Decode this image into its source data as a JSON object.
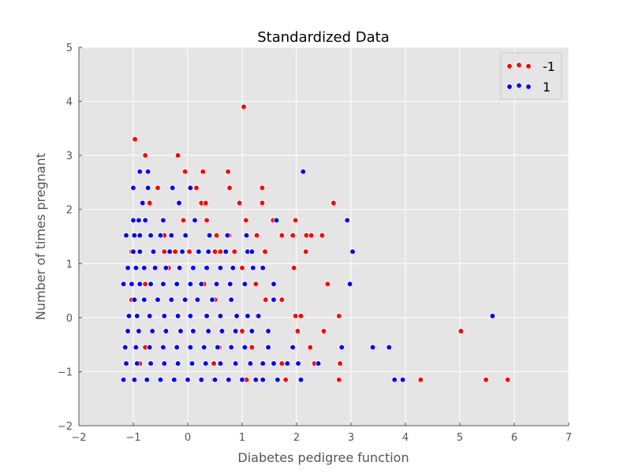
{
  "chart_data": {
    "type": "scatter",
    "title": "Standardized Data",
    "xlabel": "Diabetes pedigree function",
    "ylabel": "Number of times pregnant",
    "xlim": [
      -2,
      7
    ],
    "ylim": [
      -2,
      5
    ],
    "xticks": [
      "−2",
      "−1",
      "0",
      "1",
      "2",
      "3",
      "4",
      "5",
      "6",
      "7"
    ],
    "yticks": [
      "−2",
      "−1",
      "0",
      "1",
      "2",
      "3",
      "4",
      "5"
    ],
    "grid": true,
    "legend_position": "top-right",
    "colors": {
      "plot_bg": "#e5e5e5",
      "grid": "#ffffff",
      "neg": "#ff0000",
      "pos": "#0000ff",
      "marker_edge": "#ffffff"
    },
    "series": [
      {
        "name": "-1",
        "color": "#ff0000",
        "points": [
          [
            1.03,
            3.9
          ],
          [
            -0.97,
            3.3
          ],
          [
            -0.78,
            3.0
          ],
          [
            -0.18,
            3.0
          ],
          [
            -0.05,
            2.7
          ],
          [
            0.28,
            2.7
          ],
          [
            0.74,
            2.7
          ],
          [
            -0.55,
            2.4
          ],
          [
            0.16,
            2.4
          ],
          [
            0.77,
            2.4
          ],
          [
            1.37,
            2.4
          ],
          [
            2.68,
            2.12
          ],
          [
            -0.7,
            2.12
          ],
          [
            0.25,
            2.12
          ],
          [
            0.33,
            2.12
          ],
          [
            0.95,
            2.12
          ],
          [
            1.37,
            2.12
          ],
          [
            -0.08,
            1.8
          ],
          [
            0.35,
            1.8
          ],
          [
            1.07,
            1.8
          ],
          [
            1.57,
            1.8
          ],
          [
            1.98,
            1.8
          ],
          [
            -0.43,
            1.52
          ],
          [
            0.53,
            1.52
          ],
          [
            0.76,
            1.52
          ],
          [
            1.27,
            1.52
          ],
          [
            1.73,
            1.52
          ],
          [
            1.93,
            1.52
          ],
          [
            2.18,
            1.52
          ],
          [
            2.27,
            1.52
          ],
          [
            2.47,
            1.52
          ],
          [
            -1.03,
            1.22
          ],
          [
            -0.43,
            1.22
          ],
          [
            -0.23,
            1.22
          ],
          [
            0.03,
            1.22
          ],
          [
            0.5,
            1.22
          ],
          [
            0.6,
            1.22
          ],
          [
            0.86,
            1.22
          ],
          [
            1.42,
            1.22
          ],
          [
            2.17,
            1.22
          ],
          [
            -0.93,
            0.92
          ],
          [
            -0.35,
            0.92
          ],
          [
            0.33,
            0.92
          ],
          [
            1.0,
            0.92
          ],
          [
            1.95,
            0.92
          ],
          [
            -0.78,
            0.62
          ],
          [
            0.3,
            0.62
          ],
          [
            1.25,
            0.62
          ],
          [
            2.57,
            0.62
          ],
          [
            -1.03,
            0.33
          ],
          [
            0.5,
            0.33
          ],
          [
            1.43,
            0.33
          ],
          [
            1.73,
            0.33
          ],
          [
            1.98,
            0.03
          ],
          [
            2.08,
            0.03
          ],
          [
            2.78,
            0.03
          ],
          [
            1.28,
            0.03
          ],
          [
            2.02,
            -0.25
          ],
          [
            2.5,
            -0.25
          ],
          [
            5.02,
            -0.25
          ],
          [
            1.0,
            -0.25
          ],
          [
            -0.78,
            -0.55
          ],
          [
            0.58,
            -0.55
          ],
          [
            1.18,
            -0.55
          ],
          [
            2.25,
            -0.55
          ],
          [
            -0.88,
            -0.85
          ],
          [
            0.48,
            -0.85
          ],
          [
            1.73,
            -0.85
          ],
          [
            2.33,
            -0.85
          ],
          [
            2.8,
            -0.85
          ],
          [
            0.48,
            -1.15
          ],
          [
            1.08,
            -1.15
          ],
          [
            1.8,
            -1.15
          ],
          [
            2.78,
            -1.15
          ],
          [
            4.28,
            -1.15
          ],
          [
            5.48,
            -1.15
          ],
          [
            5.88,
            -1.15
          ]
        ]
      },
      {
        "name": "1",
        "color": "#0000ff",
        "points": [
          [
            2.12,
            2.7
          ],
          [
            -0.88,
            2.7
          ],
          [
            -0.73,
            2.7
          ],
          [
            -1.0,
            2.4
          ],
          [
            -0.73,
            2.4
          ],
          [
            -0.28,
            2.4
          ],
          [
            0.05,
            2.4
          ],
          [
            -0.83,
            2.12
          ],
          [
            -0.16,
            2.12
          ],
          [
            -1.0,
            1.8
          ],
          [
            -0.9,
            1.8
          ],
          [
            -0.78,
            1.8
          ],
          [
            -0.45,
            1.8
          ],
          [
            0.13,
            1.8
          ],
          [
            1.63,
            1.8
          ],
          [
            2.93,
            1.8
          ],
          [
            -1.13,
            1.52
          ],
          [
            -0.98,
            1.52
          ],
          [
            -0.88,
            1.52
          ],
          [
            -0.68,
            1.52
          ],
          [
            -0.5,
            1.52
          ],
          [
            -0.3,
            1.52
          ],
          [
            -0.04,
            1.52
          ],
          [
            0.4,
            1.52
          ],
          [
            0.73,
            1.52
          ],
          [
            1.08,
            1.52
          ],
          [
            -1.0,
            1.22
          ],
          [
            -0.88,
            1.22
          ],
          [
            -0.63,
            1.22
          ],
          [
            -0.33,
            1.22
          ],
          [
            -0.1,
            1.22
          ],
          [
            0.2,
            1.22
          ],
          [
            0.38,
            1.22
          ],
          [
            0.7,
            1.22
          ],
          [
            1.1,
            1.22
          ],
          [
            1.18,
            1.22
          ],
          [
            3.03,
            1.22
          ],
          [
            -1.1,
            0.92
          ],
          [
            -0.95,
            0.92
          ],
          [
            -0.8,
            0.92
          ],
          [
            -0.6,
            0.92
          ],
          [
            -0.4,
            0.92
          ],
          [
            -0.15,
            0.92
          ],
          [
            0.1,
            0.92
          ],
          [
            0.35,
            0.92
          ],
          [
            0.6,
            0.92
          ],
          [
            0.83,
            0.92
          ],
          [
            1.2,
            0.92
          ],
          [
            1.38,
            0.92
          ],
          [
            -1.18,
            0.62
          ],
          [
            -1.03,
            0.62
          ],
          [
            -0.88,
            0.62
          ],
          [
            -0.68,
            0.62
          ],
          [
            -0.45,
            0.62
          ],
          [
            -0.2,
            0.62
          ],
          [
            0.05,
            0.62
          ],
          [
            0.25,
            0.62
          ],
          [
            0.53,
            0.62
          ],
          [
            0.78,
            0.62
          ],
          [
            1.05,
            0.62
          ],
          [
            1.58,
            0.62
          ],
          [
            2.98,
            0.62
          ],
          [
            -0.98,
            0.33
          ],
          [
            -0.8,
            0.33
          ],
          [
            -0.55,
            0.33
          ],
          [
            -0.3,
            0.33
          ],
          [
            -0.05,
            0.33
          ],
          [
            0.18,
            0.33
          ],
          [
            0.45,
            0.33
          ],
          [
            0.8,
            0.33
          ],
          [
            1.58,
            0.33
          ],
          [
            -1.08,
            0.03
          ],
          [
            -0.93,
            0.03
          ],
          [
            -0.7,
            0.03
          ],
          [
            -0.43,
            0.03
          ],
          [
            -0.18,
            0.03
          ],
          [
            0.05,
            0.03
          ],
          [
            0.35,
            0.03
          ],
          [
            0.6,
            0.03
          ],
          [
            0.9,
            0.03
          ],
          [
            1.1,
            0.03
          ],
          [
            1.3,
            0.03
          ],
          [
            5.6,
            0.03
          ],
          [
            -1.1,
            -0.25
          ],
          [
            -0.9,
            -0.25
          ],
          [
            -0.65,
            -0.25
          ],
          [
            -0.4,
            -0.25
          ],
          [
            -0.13,
            -0.25
          ],
          [
            0.1,
            -0.25
          ],
          [
            0.38,
            -0.25
          ],
          [
            0.63,
            -0.25
          ],
          [
            0.88,
            -0.25
          ],
          [
            1.18,
            -0.25
          ],
          [
            1.48,
            -0.25
          ],
          [
            -1.15,
            -0.55
          ],
          [
            -0.95,
            -0.55
          ],
          [
            -0.7,
            -0.55
          ],
          [
            -0.45,
            -0.55
          ],
          [
            -0.2,
            -0.55
          ],
          [
            0.05,
            -0.55
          ],
          [
            0.3,
            -0.55
          ],
          [
            0.55,
            -0.55
          ],
          [
            0.8,
            -0.55
          ],
          [
            1.05,
            -0.55
          ],
          [
            1.48,
            -0.55
          ],
          [
            1.93,
            -0.55
          ],
          [
            2.83,
            -0.55
          ],
          [
            3.4,
            -0.55
          ],
          [
            3.7,
            -0.55
          ],
          [
            -1.13,
            -0.85
          ],
          [
            -0.93,
            -0.85
          ],
          [
            -0.68,
            -0.85
          ],
          [
            -0.43,
            -0.85
          ],
          [
            -0.18,
            -0.85
          ],
          [
            0.08,
            -0.85
          ],
          [
            0.33,
            -0.85
          ],
          [
            0.6,
            -0.85
          ],
          [
            0.88,
            -0.85
          ],
          [
            1.15,
            -0.85
          ],
          [
            1.38,
            -0.85
          ],
          [
            1.58,
            -0.85
          ],
          [
            1.83,
            -0.85
          ],
          [
            2.03,
            -0.85
          ],
          [
            2.4,
            -0.85
          ],
          [
            -1.18,
            -1.15
          ],
          [
            -0.98,
            -1.15
          ],
          [
            -0.75,
            -1.15
          ],
          [
            -0.5,
            -1.15
          ],
          [
            -0.25,
            -1.15
          ],
          [
            0.0,
            -1.15
          ],
          [
            0.25,
            -1.15
          ],
          [
            0.5,
            -1.15
          ],
          [
            0.75,
            -1.15
          ],
          [
            1.0,
            -1.15
          ],
          [
            1.25,
            -1.15
          ],
          [
            1.38,
            -1.15
          ],
          [
            1.65,
            -1.15
          ],
          [
            2.08,
            -1.15
          ],
          [
            3.8,
            -1.15
          ],
          [
            3.95,
            -1.15
          ]
        ]
      }
    ]
  }
}
